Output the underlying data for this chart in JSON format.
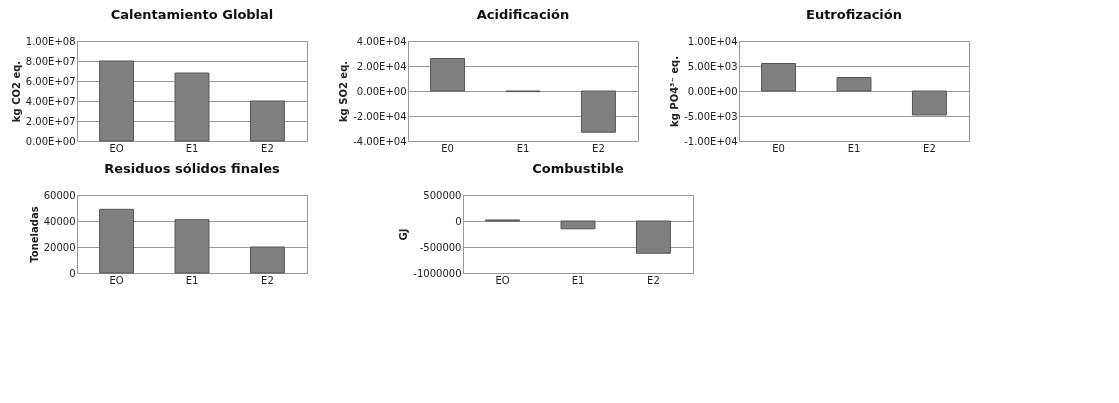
{
  "chart_data": [
    {
      "type": "bar",
      "title": "Calentamiento Globlal",
      "ylabel": "kg CO2 eq.",
      "categories": [
        "EO",
        "E1",
        "E2"
      ],
      "values": [
        80000000,
        68000000,
        40000000
      ],
      "color": "#808080",
      "ylim": [
        0,
        100000000
      ],
      "yticks": [
        {
          "value": 0,
          "label": "0.00E+00"
        },
        {
          "value": 20000000,
          "label": "2.00E+07"
        },
        {
          "value": 40000000,
          "label": "4.00E+07"
        },
        {
          "value": 60000000,
          "label": "6.00E+07"
        },
        {
          "value": 80000000,
          "label": "8.00E+07"
        },
        {
          "value": 100000000,
          "label": "1.00E+08"
        }
      ],
      "grid": "y"
    },
    {
      "type": "bar",
      "title": "Acidificación",
      "ylabel": "kg SO2 eq.",
      "categories": [
        "E0",
        "E1",
        "E2"
      ],
      "values": [
        26000,
        -500,
        -33000
      ],
      "colors": [
        "#808080",
        "#c8c8c8",
        "#808080"
      ],
      "ylim": [
        -40000,
        40000
      ],
      "yticks": [
        {
          "value": -40000,
          "label": "-4.00E+04"
        },
        {
          "value": -20000,
          "label": "-2.00E+04"
        },
        {
          "value": 0,
          "label": "0.00E+00"
        },
        {
          "value": 20000,
          "label": "2.00E+04"
        },
        {
          "value": 40000,
          "label": "4.00E+04"
        }
      ],
      "grid": "y"
    },
    {
      "type": "bar",
      "title": "Eutrofización",
      "ylabel": "kg PO4³⁻ eq.",
      "categories": [
        "E0",
        "E1",
        "E2"
      ],
      "values": [
        5500,
        2700,
        -4800
      ],
      "color": "#808080",
      "ylim": [
        -10000,
        10000
      ],
      "yticks": [
        {
          "value": -10000,
          "label": "-1.00E+04"
        },
        {
          "value": -5000,
          "label": "-5.00E+03"
        },
        {
          "value": 0,
          "label": "0.00E+00"
        },
        {
          "value": 5000,
          "label": "5.00E+03"
        },
        {
          "value": 10000,
          "label": "1.00E+04"
        }
      ],
      "grid": "y"
    },
    {
      "type": "bar",
      "title": "Residuos sólidos finales",
      "ylabel": "Toneladas",
      "categories": [
        "EO",
        "E1",
        "E2"
      ],
      "values": [
        49000,
        41000,
        20000
      ],
      "color": "#808080",
      "ylim": [
        0,
        60000
      ],
      "yticks": [
        0,
        20000,
        40000,
        60000
      ],
      "grid": "y"
    },
    {
      "type": "bar",
      "title": "Combustible",
      "ylabel": "GJ",
      "categories": [
        "EO",
        "E1",
        "E2"
      ],
      "values": [
        20000,
        -150000,
        -620000
      ],
      "color": "#808080",
      "ylim": [
        -1000000,
        500000
      ],
      "yticks": [
        -1000000,
        -500000,
        0,
        500000
      ],
      "grid": "y"
    }
  ]
}
